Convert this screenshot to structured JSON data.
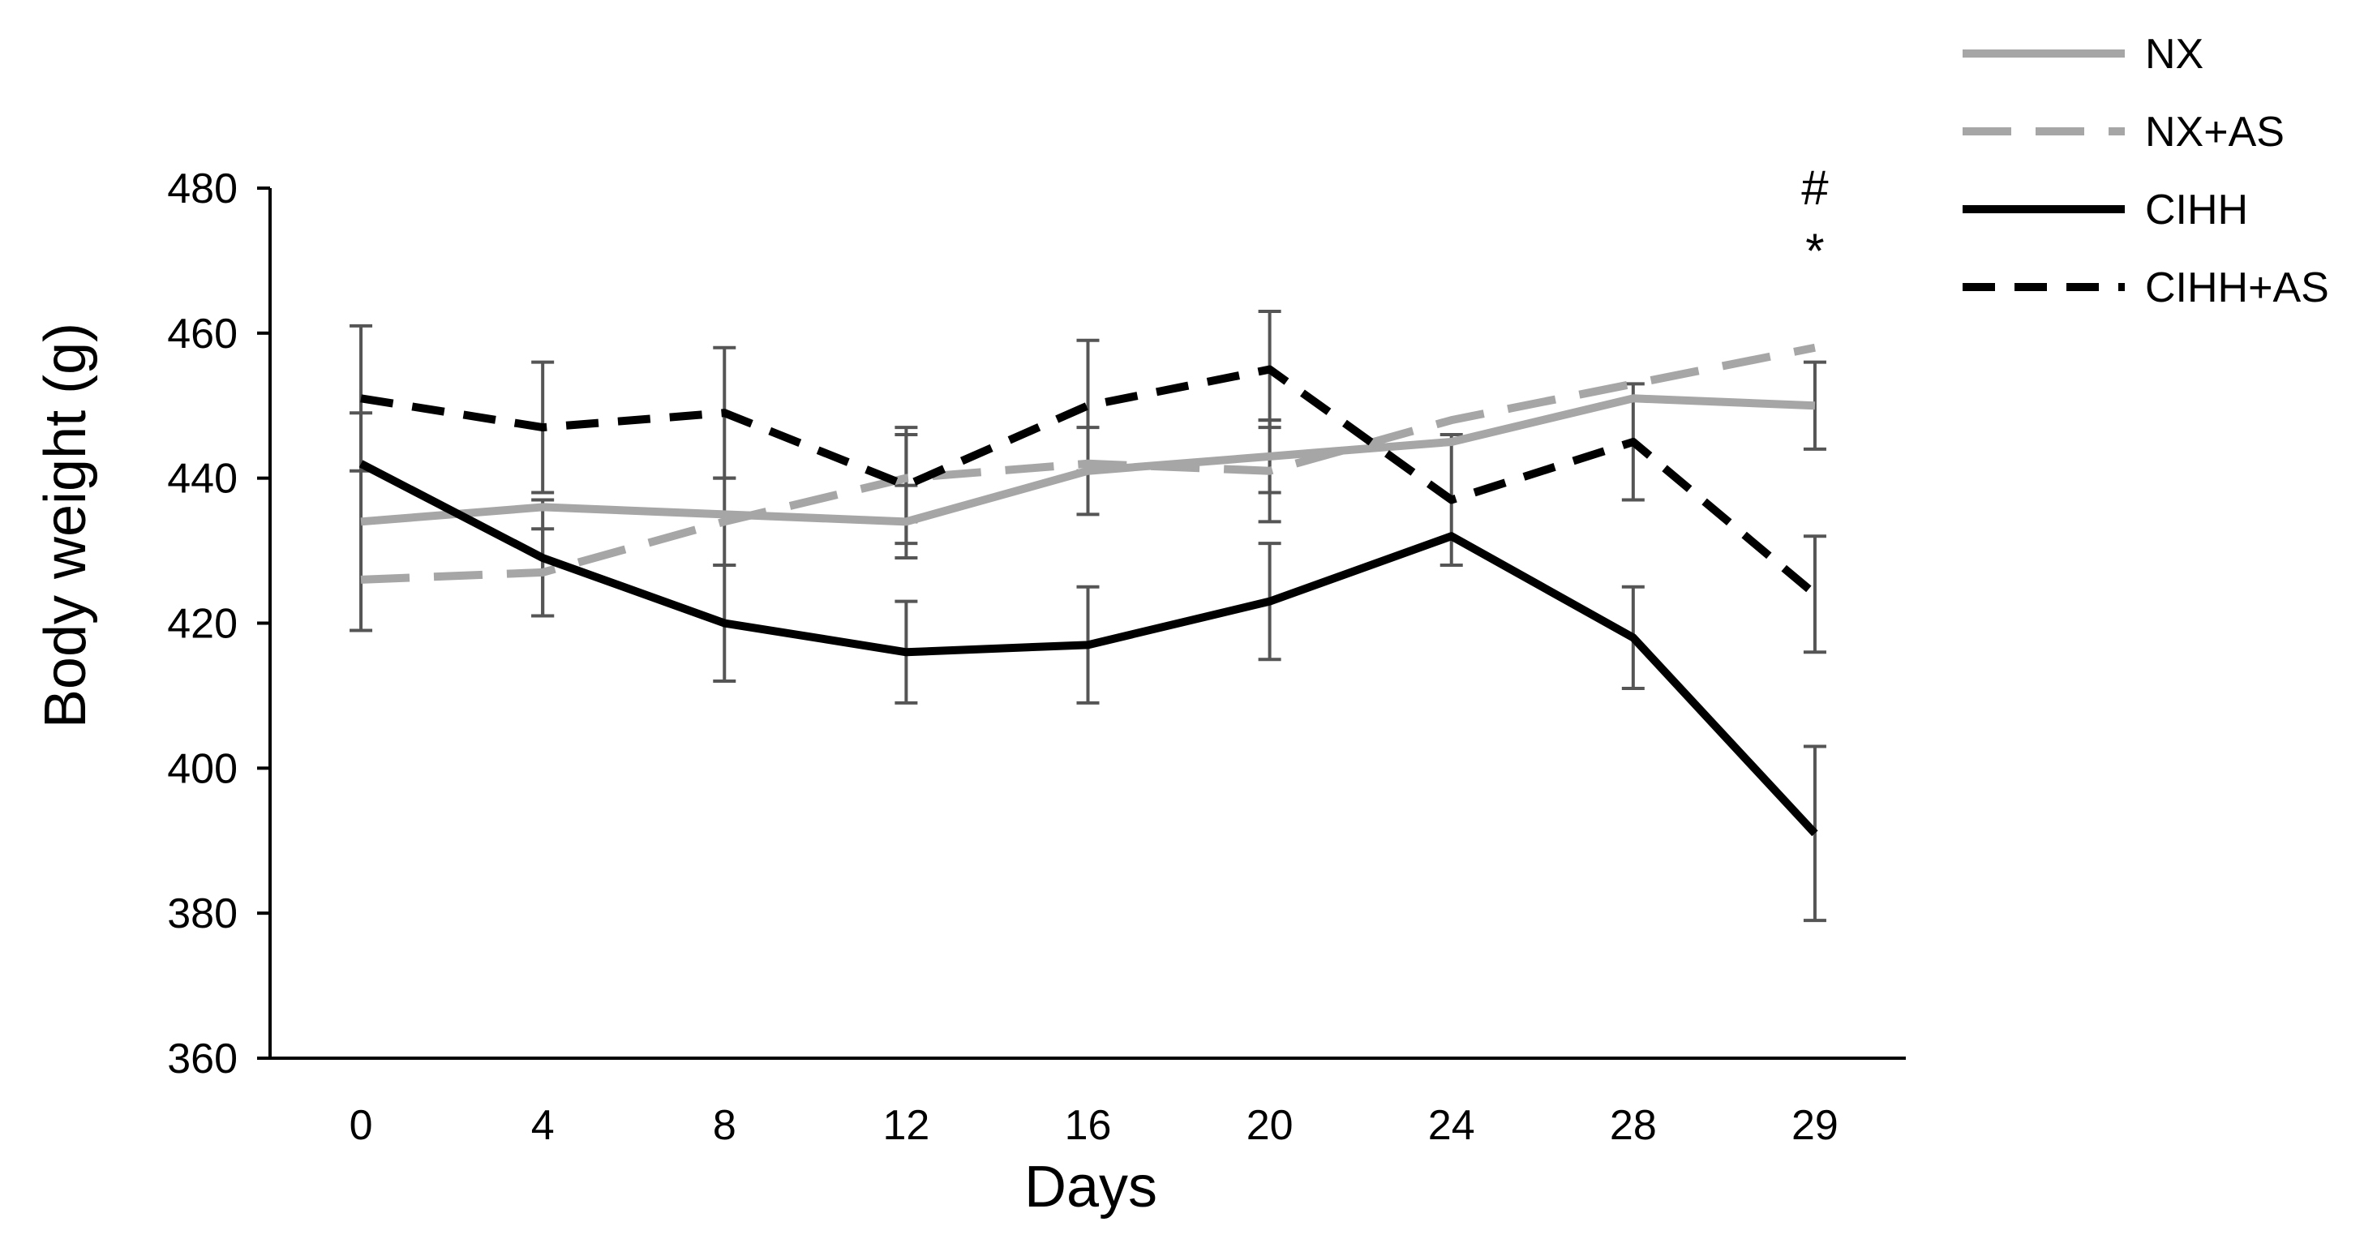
{
  "chart_data": {
    "type": "line",
    "title": "",
    "xlabel": "Days",
    "ylabel": "Body weight (g)",
    "categories": [
      "0",
      "4",
      "8",
      "12",
      "16",
      "20",
      "24",
      "28",
      "29"
    ],
    "ylim": [
      360,
      480
    ],
    "yticks": [
      "360",
      "380",
      "400",
      "420",
      "440",
      "460",
      "480"
    ],
    "grid": false,
    "legend_position": "top-right",
    "series": [
      {
        "name": "NX",
        "color": "#a6a6a6",
        "dashed": false,
        "values": [
          434,
          436,
          435,
          434,
          441,
          443,
          445,
          451,
          450
        ],
        "errors": [
          15,
          0,
          0,
          5,
          6,
          5,
          0,
          0,
          6
        ]
      },
      {
        "name": "NX+AS",
        "color": "#a6a6a6",
        "dashed": true,
        "values": [
          426,
          427,
          434,
          440,
          442,
          441,
          448,
          453,
          458
        ],
        "errors": [
          0,
          6,
          6,
          6,
          0,
          7,
          0,
          0,
          0
        ]
      },
      {
        "name": "CIHH",
        "color": "#000000",
        "dashed": false,
        "values": [
          442,
          429,
          420,
          416,
          417,
          423,
          432,
          418,
          391
        ],
        "errors": [
          0,
          8,
          8,
          7,
          8,
          8,
          0,
          7,
          12
        ]
      },
      {
        "name": "CIHH+AS",
        "color": "#000000",
        "dashed": true,
        "values": [
          451,
          447,
          449,
          439,
          450,
          455,
          437,
          445,
          424
        ],
        "errors": [
          10,
          9,
          9,
          8,
          9,
          8,
          9,
          8,
          8
        ]
      }
    ],
    "annotations": [
      {
        "category": "29",
        "lines": [
          "#",
          "*"
        ]
      }
    ]
  }
}
